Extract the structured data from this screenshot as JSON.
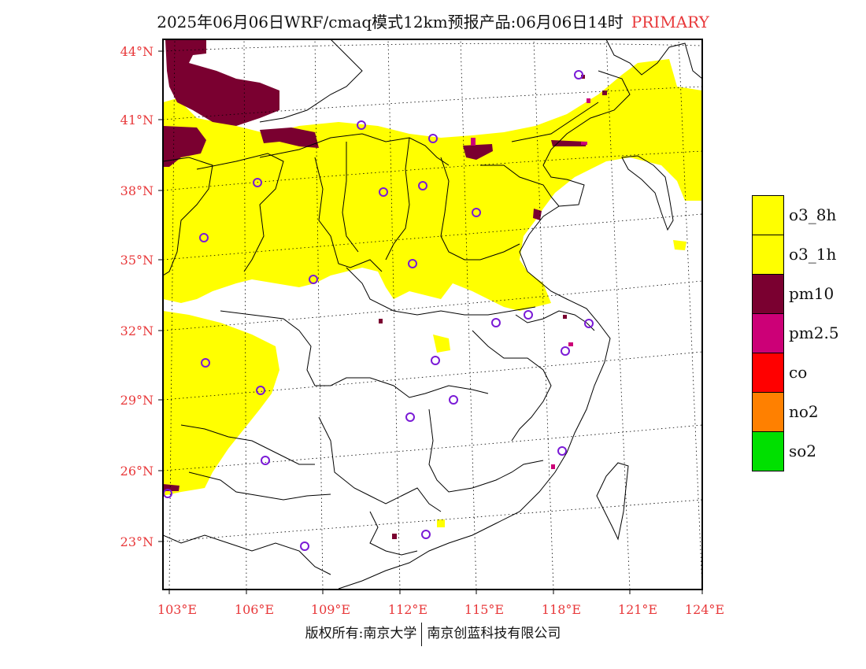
{
  "header": {
    "title": "2025年06月06日WRF/cmaq模式12km预报产品:06月06日14时",
    "tag": "PRIMARY"
  },
  "map": {
    "lat_ticks": [
      "44°N",
      "41°N",
      "38°N",
      "35°N",
      "32°N",
      "29°N",
      "26°N",
      "23°N"
    ],
    "lon_ticks": [
      "103°E",
      "106°E",
      "109°E",
      "112°E",
      "115°E",
      "118°E",
      "121°E",
      "124°E"
    ],
    "pollutant_colors": {
      "o3_8h": "#ffff00",
      "pm10": "#7a0030",
      "pm2.5": "#cc0077"
    }
  },
  "legend": {
    "items": [
      {
        "label": "o3_8h",
        "color": "#ffff00"
      },
      {
        "label": "o3_1h",
        "color": "#ffff00"
      },
      {
        "label": "pm10",
        "color": "#7a0030"
      },
      {
        "label": "pm2.5",
        "color": "#cc0077"
      },
      {
        "label": "co",
        "color": "#ff0000"
      },
      {
        "label": "no2",
        "color": "#ff8000"
      },
      {
        "label": "so2",
        "color": "#00e000"
      }
    ]
  },
  "footer": {
    "left": "版权所有:南京大学",
    "right": "南京创蓝科技有限公司"
  }
}
